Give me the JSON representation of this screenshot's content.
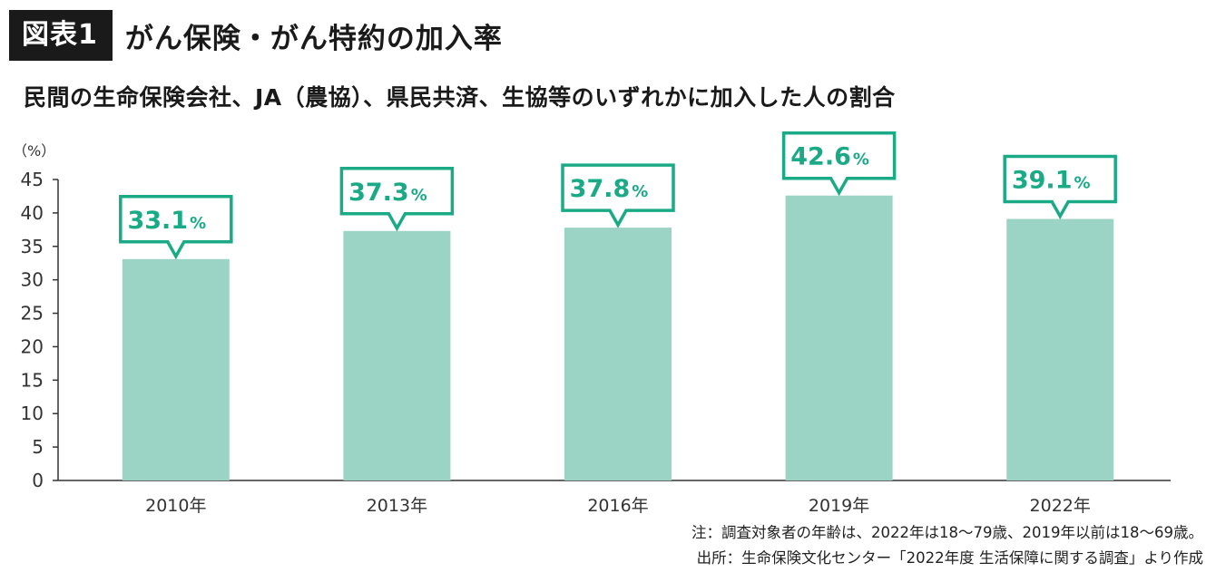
{
  "header": {
    "badge": "図表1",
    "title": "がん保険・がん特約の加入率"
  },
  "subtitle": "民間の生命保険会社、JA（農協）、県民共済、生協等のいずれかに加入した人の割合",
  "notes": {
    "note": "注：調査対象者の年齢は、2022年は18〜79歳、2019年以前は18〜69歳。",
    "source": "出所：生命保険文化センター「2022年度 生活保障に関する調査」より作成"
  },
  "colors": {
    "bar": "#9bd3c4",
    "callout": "#1aab86",
    "axis": "#333333"
  },
  "chart_data": {
    "type": "bar",
    "unit_label": "（%）",
    "categories": [
      "2010年",
      "2013年",
      "2016年",
      "2019年",
      "2022年"
    ],
    "values": [
      33.1,
      37.3,
      37.8,
      42.6,
      39.1
    ],
    "data_labels": [
      "33.1",
      "37.3",
      "37.8",
      "42.6",
      "39.1"
    ],
    "data_label_suffix": "%",
    "ylim": [
      0,
      45
    ],
    "yticks": [
      0,
      5,
      10,
      15,
      20,
      25,
      30,
      35,
      40,
      45
    ],
    "grid": false,
    "legend": "none"
  }
}
